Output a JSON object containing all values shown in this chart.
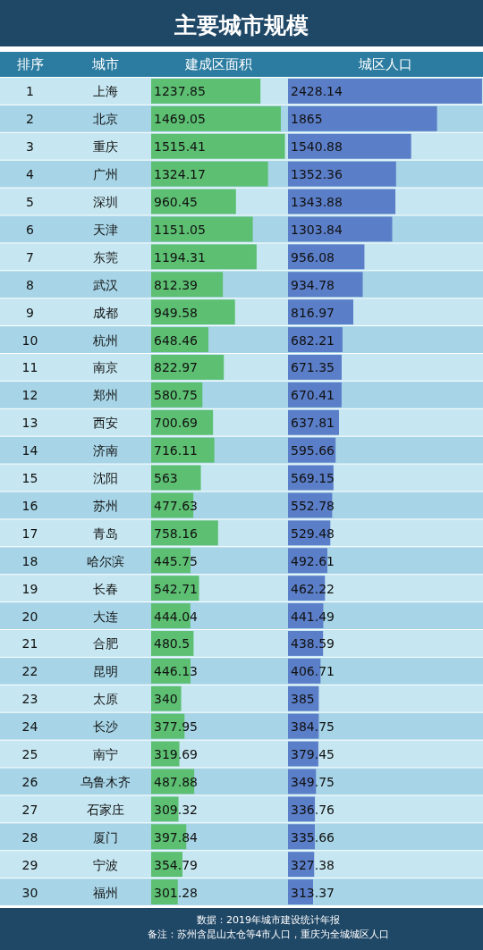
{
  "chart_data": [
    {
      "type": "bar",
      "orientation": "horizontal",
      "title": "主要城市规模",
      "xlabel": "建成区面积",
      "ylabel": "城市",
      "categories": [
        "上海",
        "北京",
        "重庆",
        "广州",
        "深圳",
        "天津",
        "东莞",
        "武汉",
        "成都",
        "杭州",
        "南京",
        "郑州",
        "西安",
        "济南",
        "沈阳",
        "苏州",
        "青岛",
        "哈尔滨",
        "长春",
        "大连",
        "合肥",
        "昆明",
        "太原",
        "长沙",
        "南宁",
        "乌鲁木齐",
        "石家庄",
        "厦门",
        "宁波",
        "福州"
      ],
      "values": [
        1237.85,
        1469.05,
        1515.41,
        1324.17,
        960.45,
        1151.05,
        1194.31,
        812.39,
        949.58,
        648.46,
        822.97,
        580.75,
        700.69,
        716.11,
        563,
        477.63,
        758.16,
        445.75,
        542.71,
        444.04,
        480.5,
        446.13,
        340,
        377.95,
        319.69,
        487.88,
        309.32,
        397.84,
        354.79,
        301.28
      ],
      "color": "#5cbf72",
      "xlim": [
        0,
        1530
      ],
      "data_labels": true
    },
    {
      "type": "bar",
      "orientation": "horizontal",
      "xlabel": "城区人口",
      "ylabel": "排序",
      "categories": [
        "1",
        "2",
        "3",
        "4",
        "5",
        "6",
        "7",
        "8",
        "9",
        "10",
        "11",
        "12",
        "13",
        "14",
        "15",
        "16",
        "17",
        "18",
        "19",
        "20",
        "21",
        "22",
        "23",
        "24",
        "25",
        "26",
        "27",
        "28",
        "29",
        "30"
      ],
      "values": [
        2428.14,
        1865,
        1540.88,
        1352.36,
        1343.88,
        1303.84,
        956.08,
        934.78,
        816.97,
        682.21,
        671.35,
        670.41,
        637.81,
        595.66,
        569.15,
        552.78,
        529.48,
        492.61,
        462.22,
        441.49,
        438.59,
        406.71,
        385,
        384.75,
        379.45,
        349.75,
        336.76,
        335.66,
        327.38,
        313.37
      ],
      "color": "#5b7ec8",
      "xlim": [
        0,
        2440
      ],
      "data_labels": true,
      "annotations": [
        "数据：2019年城市建设统计年报",
        "备注：苏州含昆山太仓等4市人口，重庆为全城城区人口"
      ]
    }
  ]
}
